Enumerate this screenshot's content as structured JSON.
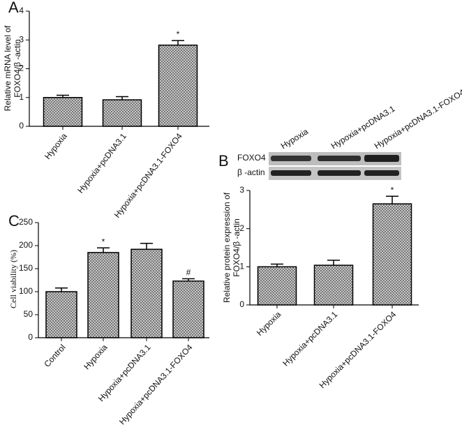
{
  "chart_data": [
    {
      "type": "bar",
      "panel_label": "A",
      "ylabel": [
        "Relative mRNA level of",
        "FOXO4/β -actin"
      ],
      "categories": [
        "Hypoxia",
        "Hypoxia+pcDNA3.1",
        "Hypoxia+pcDNA3.1-FOXO4"
      ],
      "values": [
        1.0,
        0.92,
        2.82
      ],
      "errors": [
        0.08,
        0.11,
        0.16
      ],
      "annotations": [
        null,
        null,
        "*"
      ],
      "ylim": [
        0,
        4
      ],
      "yticks": [
        0,
        1,
        2,
        3,
        4
      ]
    },
    {
      "type": "bar",
      "panel_label": "B",
      "ylabel": [
        "Relative protein expression of",
        "FOXO4/β -actin"
      ],
      "blot": {
        "lanes": [
          "Hypoxia",
          "Hypoxia+pcDNA3.1",
          "Hypoxia+pcDNA3.1-FOXO4"
        ],
        "rows": [
          "FOXO4",
          "β -actin"
        ]
      },
      "categories": [
        "Hypoxia",
        "Hypoxia+pcDNA3.1",
        "Hypoxia+pcDNA3.1-FOXO4"
      ],
      "values": [
        1.0,
        1.04,
        2.65
      ],
      "errors": [
        0.07,
        0.13,
        0.2
      ],
      "annotations": [
        null,
        null,
        "*"
      ],
      "ylim": [
        0,
        3
      ],
      "yticks": [
        0,
        1,
        2,
        3
      ]
    },
    {
      "type": "bar",
      "panel_label": "C",
      "ylabel": [
        "Cell viability (%)"
      ],
      "categories": [
        "Control",
        "Hypoxia",
        "Hypoxia+pcDNA3.1",
        "Hypoxia+pcDNA3.1-FOXO4"
      ],
      "values": [
        100,
        185,
        192,
        123
      ],
      "errors": [
        8,
        10,
        13,
        5
      ],
      "annotations": [
        null,
        "*",
        null,
        "#"
      ],
      "ylim": [
        0,
        250
      ],
      "yticks": [
        0,
        50,
        100,
        150,
        200,
        250
      ]
    }
  ]
}
